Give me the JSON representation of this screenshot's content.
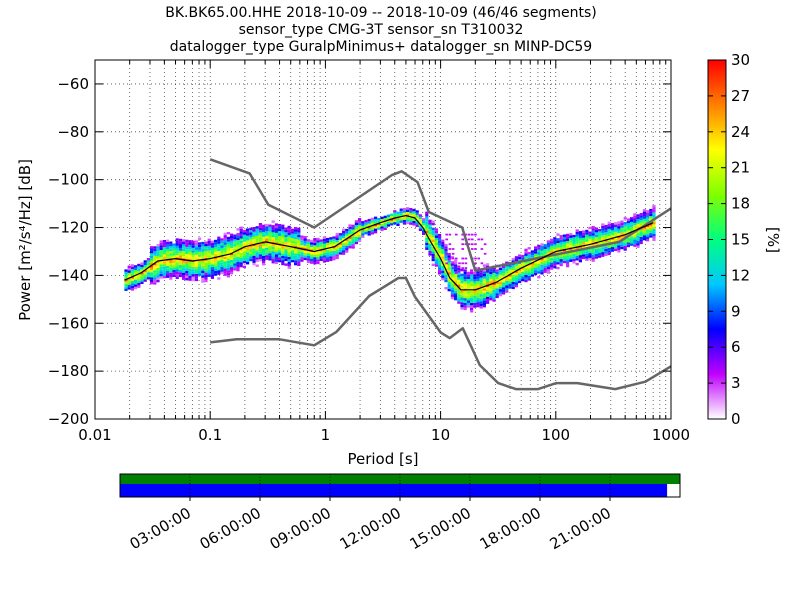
{
  "title_lines": [
    "BK.BK65.00.HHE   2018-10-09 -- 2018-10-09  (46/46 segments)",
    "sensor_type CMG-3T sensor_sn T310032",
    "datalogger_type GuralpMinimus+ datalogger_sn MINP-DC59"
  ],
  "chart_data": {
    "type": "heatmap",
    "xlabel": "Period [s]",
    "ylabel": "Power [m²/s⁴/Hz] [dB]",
    "xscale": "log",
    "xlim": [
      0.01,
      1000
    ],
    "ylim": [
      -200,
      -50
    ],
    "xticks": [
      0.01,
      0.1,
      1,
      10,
      100,
      1000
    ],
    "xtick_labels": [
      "0.01",
      "0.1",
      "1",
      "10",
      "100",
      "1000"
    ],
    "yticks": [
      -200,
      -180,
      -160,
      -140,
      -120,
      -100,
      -80,
      -60
    ],
    "ytick_labels": [
      "−200",
      "−180",
      "−160",
      "−140",
      "−120",
      "−100",
      "−80",
      "−60"
    ],
    "grid": "dotted",
    "colorbar": {
      "label": "[%]",
      "range": [
        0,
        30
      ],
      "ticks": [
        "0",
        "3",
        "6",
        "9",
        "12",
        "15",
        "18",
        "21",
        "24",
        "27",
        "30"
      ]
    },
    "mean_psd": {
      "period": [
        0.018,
        0.025,
        0.035,
        0.05,
        0.07,
        0.1,
        0.15,
        0.2,
        0.3,
        0.5,
        0.8,
        1.2,
        2,
        3,
        4,
        5,
        6,
        7,
        8,
        10,
        12,
        15,
        20,
        30,
        50,
        100,
        200,
        400,
        700
      ],
      "power": [
        -142,
        -139,
        -134,
        -133,
        -134,
        -133,
        -131,
        -128,
        -126,
        -128,
        -130,
        -128,
        -121,
        -118,
        -116,
        -115,
        -116,
        -120,
        -125,
        -133,
        -141,
        -146,
        -146,
        -143,
        -137,
        -130,
        -127,
        -123,
        -118
      ]
    },
    "nhnm": {
      "period": [
        0.1,
        0.22,
        0.32,
        0.8,
        3.8,
        4.6,
        6.3,
        7.9,
        15.4,
        20,
        354.8,
        1000
      ],
      "power": [
        -91.5,
        -97.4,
        -110.5,
        -120,
        -98,
        -96.5,
        -101,
        -113.5,
        -120,
        -138,
        -126,
        -112
      ]
    },
    "nlnm": {
      "period": [
        0.1,
        0.17,
        0.4,
        0.8,
        1.24,
        2.4,
        4.3,
        5,
        6,
        10,
        12,
        15.6,
        21.9,
        31.6,
        45,
        70,
        101,
        154,
        328,
        600,
        1000
      ],
      "power": [
        -168,
        -166.7,
        -166.7,
        -169.2,
        -163.7,
        -148.6,
        -141.1,
        -141.1,
        -149,
        -163.8,
        -166.2,
        -162.1,
        -177.5,
        -185,
        -187.5,
        -187.5,
        -185,
        -185,
        -187.5,
        -184.4,
        -178
      ]
    },
    "time_axis": {
      "labels": [
        "03:00:00",
        "06:00:00",
        "09:00:00",
        "12:00:00",
        "15:00:00",
        "18:00:00",
        "21:00:00"
      ],
      "hours": [
        3,
        6,
        9,
        12,
        15,
        18,
        21
      ],
      "data_coverage_fraction": 0.977
    }
  },
  "colors": {
    "model_lines": "#666666",
    "mean_line": "#000000",
    "coverage_available": "#0000ff",
    "coverage_top": "#008000",
    "colormap": [
      "#ffffff",
      "#c000ff",
      "#0000ff",
      "#00c8ff",
      "#00ff80",
      "#80ff00",
      "#ffff00",
      "#ff8000",
      "#ff0000"
    ]
  }
}
